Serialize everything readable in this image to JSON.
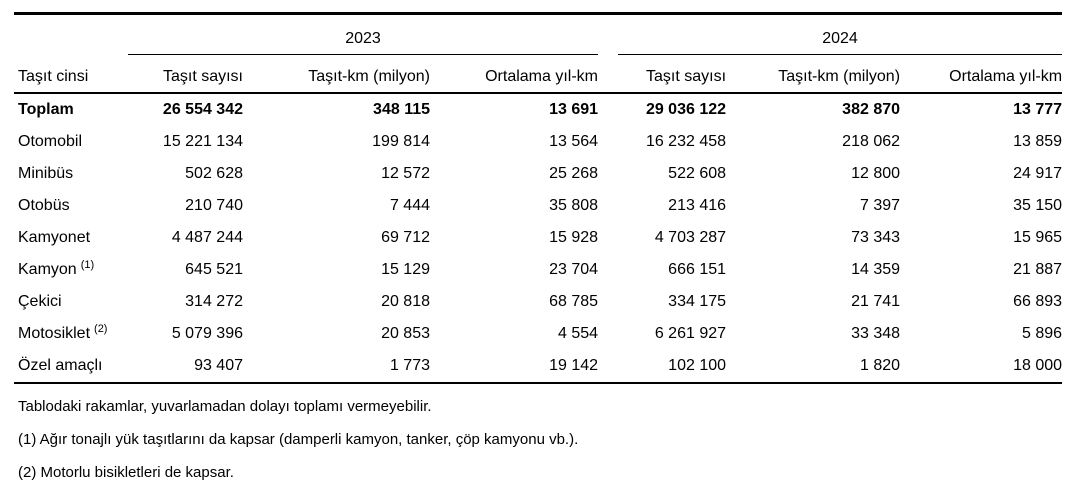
{
  "colors": {
    "text": "#000000",
    "background": "#ffffff",
    "rule": "#000000"
  },
  "table": {
    "row_header_label": "Taşıt cinsi",
    "year_groups": [
      {
        "year": "2023",
        "columns": [
          "Taşıt sayısı",
          "Taşıt-km (milyon)",
          "Ortalama yıl-km"
        ]
      },
      {
        "year": "2024",
        "columns": [
          "Taşıt sayısı",
          "Taşıt-km (milyon)",
          "Ortalama yıl-km"
        ]
      }
    ],
    "rows": [
      {
        "label": "Toplam",
        "sup": "",
        "bold": true,
        "values": [
          "26 554 342",
          "348 115",
          "13 691",
          "29 036 122",
          "382 870",
          "13 777"
        ]
      },
      {
        "label": "Otomobil",
        "sup": "",
        "bold": false,
        "values": [
          "15 221 134",
          "199 814",
          "13 564",
          "16 232 458",
          "218 062",
          "13 859"
        ]
      },
      {
        "label": "Minibüs",
        "sup": "",
        "bold": false,
        "values": [
          "502 628",
          "12 572",
          "25 268",
          "522 608",
          "12 800",
          "24 917"
        ]
      },
      {
        "label": "Otobüs",
        "sup": "",
        "bold": false,
        "values": [
          "210 740",
          "7 444",
          "35 808",
          "213 416",
          "7 397",
          "35 150"
        ]
      },
      {
        "label": "Kamyonet",
        "sup": "",
        "bold": false,
        "values": [
          "4 487 244",
          "69 712",
          "15 928",
          "4 703 287",
          "73 343",
          "15 965"
        ]
      },
      {
        "label": "Kamyon",
        "sup": "(1)",
        "bold": false,
        "values": [
          "645 521",
          "15 129",
          "23 704",
          "666 151",
          "14 359",
          "21 887"
        ]
      },
      {
        "label": "Çekici",
        "sup": "",
        "bold": false,
        "values": [
          "314 272",
          "20 818",
          "68 785",
          "334 175",
          "21 741",
          "66 893"
        ]
      },
      {
        "label": "Motosiklet",
        "sup": "(2)",
        "bold": false,
        "values": [
          "5 079 396",
          "20 853",
          "4 554",
          "6 261 927",
          "33 348",
          "5 896"
        ]
      },
      {
        "label": "Özel amaçlı",
        "sup": "",
        "bold": false,
        "values": [
          "93 407",
          "1 773",
          "19 142",
          "102 100",
          "1 820",
          "18 000"
        ]
      }
    ],
    "footnotes": [
      "Tablodaki rakamlar, yuvarlamadan dolayı toplamı vermeyebilir.",
      "(1) Ağır tonajlı yük taşıtlarını da kapsar (damperli kamyon, tanker, çöp kamyonu vb.).",
      "(2) Motorlu bisikletleri de kapsar."
    ]
  },
  "chart_data": {
    "type": "table",
    "title": "",
    "row_header": "Taşıt cinsi",
    "column_groups": [
      "2023",
      "2024"
    ],
    "columns": [
      "Taşıt sayısı",
      "Taşıt-km (milyon)",
      "Ortalama yıl-km",
      "Taşıt sayısı",
      "Taşıt-km (milyon)",
      "Ortalama yıl-km"
    ],
    "rows": [
      [
        "Toplam",
        26554342,
        348115,
        13691,
        29036122,
        382870,
        13777
      ],
      [
        "Otomobil",
        15221134,
        199814,
        13564,
        16232458,
        218062,
        13859
      ],
      [
        "Minibüs",
        502628,
        12572,
        25268,
        522608,
        12800,
        24917
      ],
      [
        "Otobüs",
        210740,
        7444,
        35808,
        213416,
        7397,
        35150
      ],
      [
        "Kamyonet",
        4487244,
        69712,
        15928,
        4703287,
        73343,
        15965
      ],
      [
        "Kamyon (1)",
        645521,
        15129,
        23704,
        666151,
        14359,
        21887
      ],
      [
        "Çekici",
        314272,
        20818,
        68785,
        334175,
        21741,
        66893
      ],
      [
        "Motosiklet (2)",
        5079396,
        20853,
        4554,
        6261927,
        33348,
        5896
      ],
      [
        "Özel amaçlı",
        93407,
        1773,
        19142,
        102100,
        1820,
        18000
      ]
    ]
  }
}
